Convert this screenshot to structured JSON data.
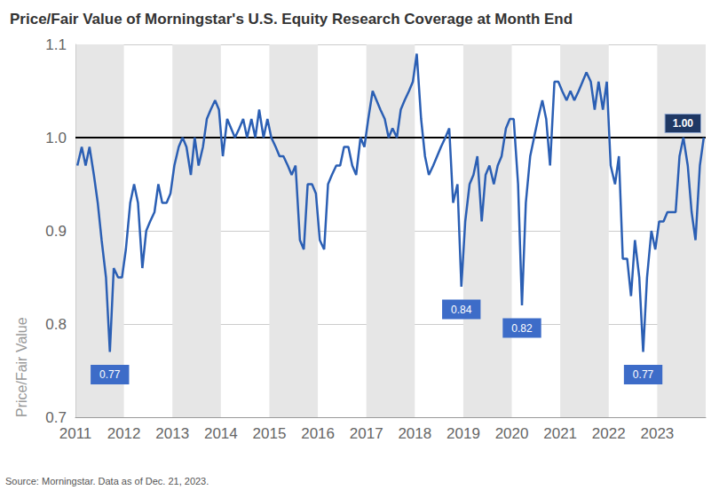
{
  "chart_data": {
    "type": "line",
    "title": "Price/Fair Value of Morningstar's U.S. Equity Research Coverage at Month End",
    "source": "Source: Morningstar. Data as of Dec. 21, 2023.",
    "y_label": "Price/Fair Value",
    "color": "#2b5fb4",
    "x": [
      2011.04,
      2011.13,
      2011.21,
      2011.29,
      2011.38,
      2011.46,
      2011.54,
      2011.63,
      2011.71,
      2011.79,
      2011.88,
      2011.96,
      2012.04,
      2012.13,
      2012.21,
      2012.29,
      2012.38,
      2012.46,
      2012.54,
      2012.63,
      2012.71,
      2012.79,
      2012.88,
      2012.96,
      2013.04,
      2013.13,
      2013.21,
      2013.29,
      2013.38,
      2013.46,
      2013.54,
      2013.63,
      2013.71,
      2013.79,
      2013.88,
      2013.96,
      2014.04,
      2014.13,
      2014.21,
      2014.29,
      2014.38,
      2014.46,
      2014.54,
      2014.63,
      2014.71,
      2014.79,
      2014.88,
      2014.96,
      2015.04,
      2015.13,
      2015.21,
      2015.29,
      2015.38,
      2015.46,
      2015.54,
      2015.63,
      2015.71,
      2015.79,
      2015.88,
      2015.96,
      2016.04,
      2016.13,
      2016.21,
      2016.29,
      2016.38,
      2016.46,
      2016.54,
      2016.63,
      2016.71,
      2016.79,
      2016.88,
      2016.96,
      2017.04,
      2017.13,
      2017.21,
      2017.29,
      2017.38,
      2017.46,
      2017.54,
      2017.63,
      2017.71,
      2017.79,
      2017.88,
      2017.96,
      2018.04,
      2018.13,
      2018.21,
      2018.29,
      2018.38,
      2018.46,
      2018.54,
      2018.63,
      2018.71,
      2018.79,
      2018.88,
      2018.96,
      2019.04,
      2019.13,
      2019.21,
      2019.29,
      2019.38,
      2019.46,
      2019.54,
      2019.63,
      2019.71,
      2019.79,
      2019.88,
      2019.96,
      2020.04,
      2020.13,
      2020.21,
      2020.29,
      2020.38,
      2020.46,
      2020.54,
      2020.63,
      2020.71,
      2020.79,
      2020.88,
      2020.96,
      2021.04,
      2021.13,
      2021.21,
      2021.29,
      2021.38,
      2021.46,
      2021.54,
      2021.63,
      2021.71,
      2021.79,
      2021.88,
      2021.96,
      2022.04,
      2022.13,
      2022.21,
      2022.29,
      2022.38,
      2022.46,
      2022.54,
      2022.63,
      2022.71,
      2022.79,
      2022.88,
      2022.96,
      2023.04,
      2023.13,
      2023.21,
      2023.29,
      2023.38,
      2023.46,
      2023.54,
      2023.63,
      2023.71,
      2023.79,
      2023.88,
      2023.96
    ],
    "values": [
      0.97,
      0.99,
      0.97,
      0.99,
      0.96,
      0.93,
      0.89,
      0.85,
      0.77,
      0.86,
      0.85,
      0.85,
      0.88,
      0.93,
      0.95,
      0.93,
      0.86,
      0.9,
      0.91,
      0.92,
      0.95,
      0.93,
      0.93,
      0.94,
      0.97,
      0.99,
      1.0,
      0.99,
      0.96,
      1.0,
      0.97,
      0.99,
      1.02,
      1.03,
      1.04,
      1.03,
      0.98,
      1.02,
      1.01,
      1.0,
      1.01,
      1.02,
      1.0,
      1.02,
      1.0,
      1.03,
      1.0,
      1.02,
      1.0,
      0.99,
      0.98,
      0.98,
      0.97,
      0.96,
      0.97,
      0.89,
      0.88,
      0.95,
      0.95,
      0.94,
      0.89,
      0.88,
      0.95,
      0.96,
      0.97,
      0.97,
      0.99,
      0.99,
      0.97,
      0.96,
      1.0,
      0.99,
      1.02,
      1.05,
      1.04,
      1.03,
      1.02,
      1.0,
      1.01,
      1.0,
      1.03,
      1.04,
      1.05,
      1.06,
      1.09,
      1.02,
      0.98,
      0.96,
      0.97,
      0.98,
      0.99,
      1.0,
      1.01,
      0.93,
      0.95,
      0.84,
      0.91,
      0.95,
      0.96,
      0.98,
      0.91,
      0.96,
      0.97,
      0.95,
      0.97,
      0.98,
      1.01,
      1.02,
      1.02,
      0.95,
      0.82,
      0.93,
      0.98,
      1.0,
      1.02,
      1.04,
      1.02,
      0.97,
      1.06,
      1.06,
      1.05,
      1.04,
      1.05,
      1.04,
      1.05,
      1.06,
      1.07,
      1.06,
      1.03,
      1.06,
      1.03,
      1.06,
      0.97,
      0.95,
      0.98,
      0.87,
      0.87,
      0.83,
      0.89,
      0.85,
      0.77,
      0.85,
      0.9,
      0.88,
      0.91,
      0.91,
      0.92,
      0.92,
      0.92,
      0.98,
      1.0,
      0.97,
      0.92,
      0.89,
      0.97,
      1.0
    ],
    "xlim": [
      2011,
      2024
    ],
    "xticks": [
      2011,
      2012,
      2013,
      2014,
      2015,
      2016,
      2017,
      2018,
      2019,
      2020,
      2021,
      2022,
      2023
    ],
    "ylim": [
      0.7,
      1.1
    ],
    "yticks": [
      0.7,
      0.8,
      0.9,
      {
        "value": 1,
        "label": "1.0"
      },
      1.1
    ],
    "grid": true,
    "reference_line": {
      "value": 1,
      "label": "1.00"
    },
    "annotations": [
      {
        "x": 2011.71,
        "y": 0.77,
        "label": "0.77"
      },
      {
        "x": 2018.96,
        "y": 0.84,
        "label": "0.84"
      },
      {
        "x": 2020.21,
        "y": 0.82,
        "label": "0.82"
      },
      {
        "x": 2022.71,
        "y": 0.77,
        "label": "0.77"
      }
    ]
  }
}
